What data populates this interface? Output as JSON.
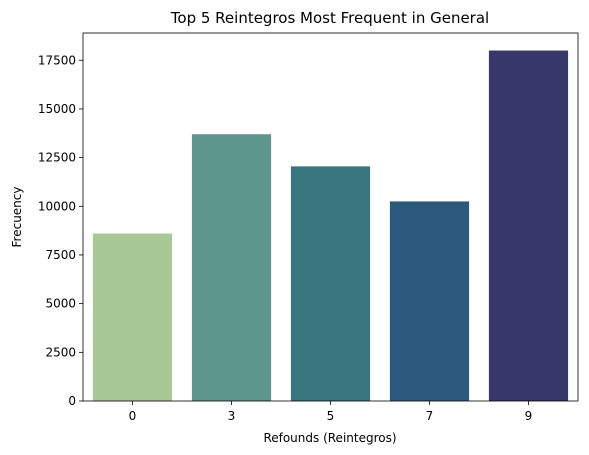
{
  "chart_data": {
    "type": "bar",
    "title": "Top 5 Reintegros Most Frequent in General",
    "xlabel": "Refounds (Reintegros)",
    "ylabel": "Frecuency",
    "categories": [
      "0",
      "3",
      "5",
      "7",
      "9"
    ],
    "values": [
      8600,
      13700,
      12050,
      10250,
      18000
    ],
    "colors": [
      "#a8c896",
      "#5c968c",
      "#38757e",
      "#2c5a7c",
      "#37376a"
    ],
    "ylim": [
      0,
      18000
    ],
    "yticks": [
      0,
      2500,
      5000,
      7500,
      10000,
      12500,
      15000,
      17500
    ],
    "grid": false,
    "legend": "none"
  }
}
